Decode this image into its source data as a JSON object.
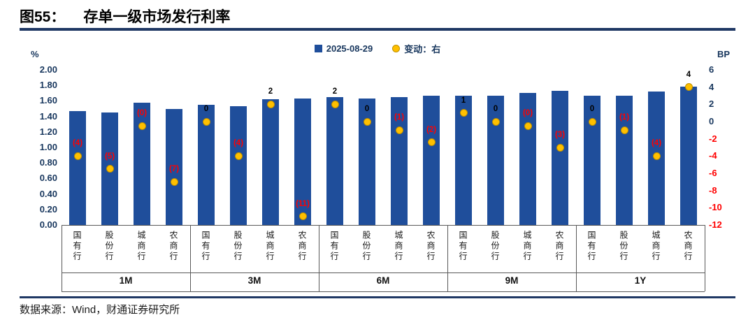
{
  "header": {
    "figure_label": "图55：",
    "title": "存单一级市场发行利率"
  },
  "footer": {
    "source": "数据来源：Wind，财通证券研究所"
  },
  "chart_data": {
    "type": "bar",
    "title": "存单一级市场发行利率",
    "legend_position": "top",
    "grid": false,
    "groups": [
      "1M",
      "3M",
      "6M",
      "9M",
      "1Y"
    ],
    "banks": [
      "国有行",
      "股份行",
      "城商行",
      "农商行"
    ],
    "left_axis": {
      "unit": "%",
      "min": 0,
      "max": 2,
      "ticks": [
        "2.00",
        "1.80",
        "1.60",
        "1.40",
        "1.20",
        "1.00",
        "0.80",
        "0.60",
        "0.40",
        "0.20",
        "0.00"
      ]
    },
    "right_axis": {
      "unit": "BP",
      "min": -12,
      "max": 6,
      "ticks": [
        "6",
        "4",
        "2",
        "0",
        "-2",
        "-4",
        "-6",
        "-8",
        "-10",
        "-12"
      ]
    },
    "series": [
      {
        "name": "2025-08-29",
        "type": "bar",
        "axis": "left",
        "unit": "%",
        "values": [
          [
            1.47,
            1.45,
            1.58,
            1.5
          ],
          [
            1.55,
            1.53,
            1.62,
            1.63
          ],
          [
            1.65,
            1.63,
            1.65,
            1.67
          ],
          [
            1.67,
            1.67,
            1.7,
            1.73
          ],
          [
            1.67,
            1.67,
            1.72,
            1.78
          ]
        ]
      },
      {
        "name": "变动：右",
        "type": "scatter",
        "axis": "right",
        "unit": "BP",
        "values": [
          [
            -4,
            -5.5,
            -0.5,
            -7
          ],
          [
            0,
            -4,
            2,
            -11
          ],
          [
            2,
            0,
            -1,
            -2.4
          ],
          [
            1,
            0,
            -0.5,
            -3
          ],
          [
            0,
            -1,
            -4,
            4
          ]
        ],
        "labels": [
          [
            "(4)",
            "(5)",
            "(0)",
            "(7)"
          ],
          [
            "0",
            "(4)",
            "2",
            "(11)"
          ],
          [
            "2",
            "0",
            "(1)",
            "(2)"
          ],
          [
            "1",
            "0",
            "(0)",
            "(3)"
          ],
          [
            "0",
            "(1)",
            "(4)",
            "4"
          ]
        ]
      }
    ],
    "colors": {
      "bar": "#1F4E9B",
      "dot": "#FFC000",
      "negative": "#FF0000",
      "positive": "#000000",
      "axis_text": "#17365D",
      "rule": "#1F3864"
    }
  }
}
